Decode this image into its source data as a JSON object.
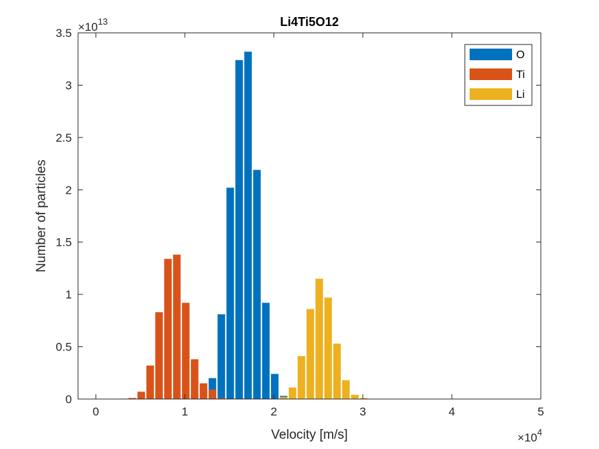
{
  "chart_data": {
    "type": "bar",
    "title": "Li4Ti5O12",
    "xlabel": "Velocity [m/s]",
    "ylabel": "Number of particles",
    "xlim": [
      -0.2,
      5.0
    ],
    "ylim": [
      0,
      3.5
    ],
    "x_exponent_base": "×10",
    "x_exponent_power": "4",
    "y_exponent_base": "×10",
    "y_exponent_power": "13",
    "x_ticks": [
      0,
      1,
      2,
      3,
      4,
      5
    ],
    "x_tick_labels": [
      "0",
      "1",
      "2",
      "3",
      "4",
      "5"
    ],
    "y_ticks": [
      0,
      0.5,
      1,
      1.5,
      2,
      2.5,
      3,
      3.5
    ],
    "y_tick_labels": [
      "0",
      "0.5",
      "1",
      "1.5",
      "2",
      "2.5",
      "3",
      "3.5"
    ],
    "grid": false,
    "legend_position": "top-right",
    "bar_width": 0.085,
    "series": [
      {
        "name": "O",
        "color": "#0072BD",
        "x": [
          1.31,
          1.41,
          1.51,
          1.61,
          1.71,
          1.81,
          1.91,
          2.01,
          2.11
        ],
        "values": [
          0.2,
          0.81,
          2.02,
          3.24,
          3.32,
          2.19,
          0.92,
          0.24,
          0.03
        ]
      },
      {
        "name": "Ti",
        "color": "#D95319",
        "x": [
          0.31,
          0.41,
          0.51,
          0.61,
          0.71,
          0.81,
          0.91,
          1.01,
          1.11,
          1.21,
          1.31,
          1.41
        ],
        "values": [
          0.003,
          0.01,
          0.07,
          0.32,
          0.83,
          1.34,
          1.38,
          0.92,
          0.38,
          0.15,
          0.09,
          0.01
        ]
      },
      {
        "name": "Li",
        "color": "#EDB120",
        "x": [
          2.11,
          2.21,
          2.31,
          2.41,
          2.51,
          2.61,
          2.71,
          2.81,
          2.91,
          3.01
        ],
        "values": [
          0.02,
          0.11,
          0.41,
          0.86,
          1.15,
          0.97,
          0.53,
          0.18,
          0.04,
          0.01
        ]
      }
    ]
  }
}
